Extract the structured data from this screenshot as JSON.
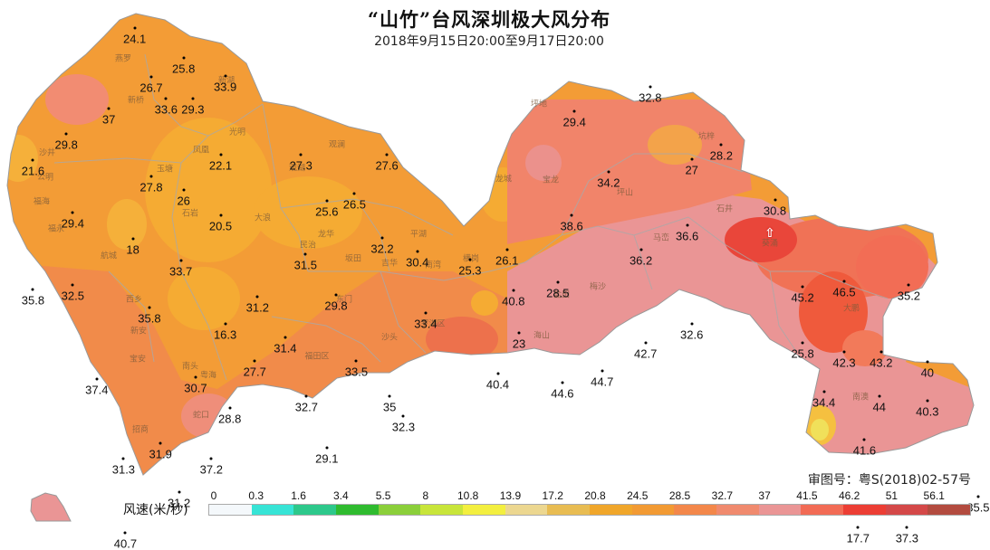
{
  "title": "“山竹”台风深圳极大风分布",
  "subtitle": "2018年9月15日20:00至9月17日20:00",
  "approval": "审图号：粤S(2018)02-57号",
  "legend": {
    "title": "风速(米/秒)",
    "ticks": [
      "0",
      "0.3",
      "1.6",
      "3.4",
      "5.5",
      "8",
      "10.8",
      "13.9",
      "17.2",
      "20.8",
      "24.5",
      "28.5",
      "32.7",
      "37",
      "41.5",
      "46.2",
      "51",
      "56.1"
    ],
    "colors": [
      "#f4f8fb",
      "#37e4d6",
      "#2dc88b",
      "#2fbb2f",
      "#8bcf3a",
      "#c8e53a",
      "#f3ef3f",
      "#ecd790",
      "#e8bc52",
      "#f0a62a",
      "#f29a33",
      "#f3874a",
      "#f08a6e",
      "#ea9595",
      "#f26b55",
      "#ec3e34",
      "#d44848",
      "#b34b3f"
    ]
  },
  "place_names": [
    "燕罗",
    "新桥",
    "沙井",
    "福海",
    "福永",
    "航城",
    "西乡",
    "新安",
    "宝安",
    "南头",
    "粤海",
    "蛇口",
    "招商",
    "凤凰",
    "玉塘",
    "石岩",
    "光明",
    "新湖",
    "公明",
    "观澜",
    "观湖",
    "龙华",
    "大浪",
    "民治",
    "坂田",
    "吉华",
    "平湖",
    "南湾",
    "横岗",
    "龙城",
    "宝龙",
    "坪地",
    "坑梓",
    "坪山",
    "马峦",
    "葵涌",
    "大鹏",
    "南澳",
    "盐田",
    "梅沙",
    "海山",
    "罗湖区",
    "福田区",
    "沙头",
    "东门",
    "石井"
  ],
  "stations": [
    {
      "v": "24.1",
      "lon": 113.782,
      "lat": 22.842
    },
    {
      "v": "25.8",
      "lon": 113.835,
      "lat": 22.815
    },
    {
      "v": "26.7",
      "lon": 113.8,
      "lat": 22.797
    },
    {
      "v": "33.9",
      "lon": 113.88,
      "lat": 22.798
    },
    {
      "v": "33.6",
      "lon": 113.816,
      "lat": 22.777
    },
    {
      "v": "29.3",
      "lon": 113.845,
      "lat": 22.777
    },
    {
      "v": "37",
      "lon": 113.754,
      "lat": 22.768
    },
    {
      "v": "29.8",
      "lon": 113.708,
      "lat": 22.744
    },
    {
      "v": "21.6",
      "lon": 113.672,
      "lat": 22.72
    },
    {
      "v": "22.1",
      "lon": 113.875,
      "lat": 22.725
    },
    {
      "v": "27.3",
      "lon": 113.962,
      "lat": 22.725
    },
    {
      "v": "27.6",
      "lon": 114.055,
      "lat": 22.725
    },
    {
      "v": "27.8",
      "lon": 113.8,
      "lat": 22.705
    },
    {
      "v": "26",
      "lon": 113.835,
      "lat": 22.692
    },
    {
      "v": "25.6",
      "lon": 113.99,
      "lat": 22.682
    },
    {
      "v": "26.5",
      "lon": 114.02,
      "lat": 22.689
    },
    {
      "v": "29.4",
      "lon": 113.715,
      "lat": 22.671
    },
    {
      "v": "20.5",
      "lon": 113.875,
      "lat": 22.669
    },
    {
      "v": "18",
      "lon": 113.78,
      "lat": 22.647
    },
    {
      "v": "32.2",
      "lon": 114.05,
      "lat": 22.648
    },
    {
      "v": "33.7",
      "lon": 113.832,
      "lat": 22.627
    },
    {
      "v": "31.5",
      "lon": 113.967,
      "lat": 22.633
    },
    {
      "v": "30.4",
      "lon": 114.088,
      "lat": 22.635
    },
    {
      "v": "25.3",
      "lon": 114.145,
      "lat": 22.628
    },
    {
      "v": "35.8",
      "lon": 113.672,
      "lat": 22.6
    },
    {
      "v": "32.5",
      "lon": 113.715,
      "lat": 22.604
    },
    {
      "v": "31.2",
      "lon": 113.915,
      "lat": 22.593
    },
    {
      "v": "29.8",
      "lon": 114.0,
      "lat": 22.595
    },
    {
      "v": "35.8",
      "lon": 113.798,
      "lat": 22.583
    },
    {
      "v": "16.3",
      "lon": 113.88,
      "lat": 22.568
    },
    {
      "v": "31.4",
      "lon": 113.945,
      "lat": 22.556
    },
    {
      "v": "33.4",
      "lon": 114.097,
      "lat": 22.578
    },
    {
      "v": "23",
      "lon": 114.198,
      "lat": 22.56
    },
    {
      "v": "27.7",
      "lon": 113.912,
      "lat": 22.534
    },
    {
      "v": "33.5",
      "lon": 114.022,
      "lat": 22.534
    },
    {
      "v": "30.7",
      "lon": 113.848,
      "lat": 22.519
    },
    {
      "v": "37.4",
      "lon": 113.741,
      "lat": 22.517
    },
    {
      "v": "40.4",
      "lon": 114.175,
      "lat": 22.522
    },
    {
      "v": "44.6",
      "lon": 114.245,
      "lat": 22.514
    },
    {
      "v": "44.7",
      "lon": 114.288,
      "lat": 22.525
    },
    {
      "v": "32.7",
      "lon": 113.968,
      "lat": 22.501
    },
    {
      "v": "35",
      "lon": 114.058,
      "lat": 22.501
    },
    {
      "v": "28.8",
      "lon": 113.885,
      "lat": 22.49
    },
    {
      "v": "32.3",
      "lon": 114.073,
      "lat": 22.483
    },
    {
      "v": "31.9",
      "lon": 113.81,
      "lat": 22.458
    },
    {
      "v": "37.2",
      "lon": 113.865,
      "lat": 22.443
    },
    {
      "v": "29.1",
      "lon": 113.99,
      "lat": 22.453
    },
    {
      "v": "31.3",
      "lon": 113.77,
      "lat": 22.443
    },
    {
      "v": "31.2",
      "lon": 113.83,
      "lat": 22.412
    },
    {
      "v": "40.7",
      "lon": 113.772,
      "lat": 22.375
    },
    {
      "v": "32.8",
      "lon": 114.34,
      "lat": 22.788
    },
    {
      "v": "29.4",
      "lon": 114.258,
      "lat": 22.765
    },
    {
      "v": "28.2",
      "lon": 114.417,
      "lat": 22.734
    },
    {
      "v": "27",
      "lon": 114.385,
      "lat": 22.721
    },
    {
      "v": "34.2",
      "lon": 114.295,
      "lat": 22.709
    },
    {
      "v": "30.8",
      "lon": 114.475,
      "lat": 22.683
    },
    {
      "v": "38.6",
      "lon": 114.255,
      "lat": 22.669
    },
    {
      "v": "36.6",
      "lon": 114.38,
      "lat": 22.66
    },
    {
      "v": "36.2",
      "lon": 114.33,
      "lat": 22.637
    },
    {
      "v": "26.1",
      "lon": 114.185,
      "lat": 22.637
    },
    {
      "v": "28.5",
      "lon": 114.24,
      "lat": 22.607
    },
    {
      "v": "40.8",
      "lon": 114.192,
      "lat": 22.599
    },
    {
      "v": "45.2",
      "lon": 114.505,
      "lat": 22.603
    },
    {
      "v": "46.5",
      "lon": 114.55,
      "lat": 22.608
    },
    {
      "v": "35.2",
      "lon": 114.62,
      "lat": 22.604
    },
    {
      "v": "32.6",
      "lon": 114.385,
      "lat": 22.568
    },
    {
      "v": "42.7",
      "lon": 114.335,
      "lat": 22.551
    },
    {
      "v": "25.8",
      "lon": 114.505,
      "lat": 22.551
    },
    {
      "v": "42.3",
      "lon": 114.55,
      "lat": 22.542
    },
    {
      "v": "43.2",
      "lon": 114.59,
      "lat": 22.542
    },
    {
      "v": "40",
      "lon": 114.64,
      "lat": 22.533
    },
    {
      "v": "34.4",
      "lon": 114.528,
      "lat": 22.505
    },
    {
      "v": "44",
      "lon": 114.588,
      "lat": 22.501
    },
    {
      "v": "40.3",
      "lon": 114.64,
      "lat": 22.497
    },
    {
      "v": "41.6",
      "lon": 114.572,
      "lat": 22.461
    },
    {
      "v": "35.5",
      "lon": 114.695,
      "lat": 22.408
    },
    {
      "v": "17.7",
      "lon": 114.565,
      "lat": 22.38
    },
    {
      "v": "37.3",
      "lon": 114.618,
      "lat": 22.38
    }
  ]
}
